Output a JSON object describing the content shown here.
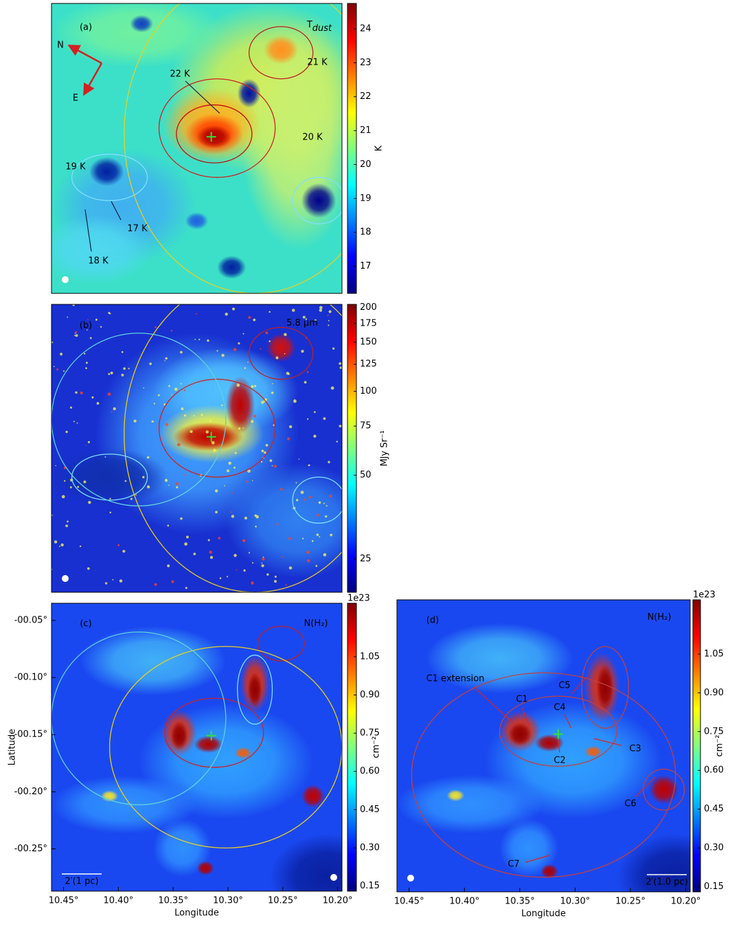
{
  "chart_data": [
    {
      "type": "heatmap",
      "panel": "(a)",
      "title": "T",
      "title_subscript": "dust",
      "annotations": [
        "N",
        "E",
        "22 K",
        "21 K",
        "20 K",
        "19 K",
        "17 K",
        "18 K"
      ],
      "colorbar_label": "K",
      "cmap": "jet",
      "clim": [
        16.2,
        24.75
      ],
      "cticks": [
        17,
        18,
        19,
        20,
        21,
        22,
        23,
        24
      ]
    },
    {
      "type": "heatmap",
      "panel": "(b)",
      "title": "5.8 μm",
      "colorbar_label": "MJy Sr⁻¹",
      "cmap": "jet",
      "cscale": "log",
      "clim": [
        19,
        205
      ],
      "cticks": [
        25,
        50,
        75,
        100,
        125,
        150,
        175,
        200
      ]
    },
    {
      "type": "heatmap",
      "panel": "(c)",
      "title": "N(H₂)",
      "scalebar": "2′(1 pc)",
      "colorbar_label": "cm⁻²",
      "colorbar_offset": "1e23",
      "cmap": "jet",
      "clim": [
        0.13,
        1.26
      ],
      "cticks": [
        0.15,
        {
          "value": 0.3,
          "label": "0.30"
        },
        0.45,
        {
          "value": 0.6,
          "label": "0.60"
        },
        0.75,
        {
          "value": 0.9,
          "label": "0.90"
        },
        1.05
      ],
      "xlabel": "Longitude",
      "ylabel": "Latitude",
      "xlim": [
        10.461,
        10.196
      ],
      "xticks": [
        {
          "value": 10.45,
          "label": "10.45°"
        },
        {
          "value": 10.4,
          "label": "10.40°"
        },
        {
          "value": 10.35,
          "label": "10.35°"
        },
        {
          "value": 10.3,
          "label": "10.30°"
        },
        {
          "value": 10.25,
          "label": "10.25°"
        },
        {
          "value": 10.2,
          "label": "10.20°"
        }
      ],
      "ylim": [
        -0.287,
        -0.035
      ],
      "yticks": [
        {
          "value": -0.05,
          "label": "-00.05°"
        },
        {
          "value": -0.1,
          "label": "-00.10°"
        },
        {
          "value": -0.15,
          "label": "-00.15°"
        },
        {
          "value": -0.2,
          "label": "-00.20°"
        },
        {
          "value": -0.25,
          "label": "-00.25°"
        }
      ]
    },
    {
      "type": "heatmap",
      "panel": "(d)",
      "title": "N(H₂)",
      "scalebar": "2′(1.0 pc)",
      "annotations": [
        "C1 extension",
        "C1",
        "C2",
        "C3",
        "C4",
        "C5",
        "C6",
        "C7"
      ],
      "colorbar_label": "cm⁻²",
      "colorbar_offset": "1e23",
      "cmap": "jet",
      "clim": [
        0.13,
        1.26
      ],
      "cticks": [
        0.15,
        {
          "value": 0.3,
          "label": "0.30"
        },
        0.45,
        {
          "value": 0.6,
          "label": "0.60"
        },
        0.75,
        {
          "value": 0.9,
          "label": "0.90"
        },
        1.05
      ],
      "xlabel": "Longitude",
      "xlim": [
        10.461,
        10.196
      ],
      "xticks": [
        {
          "value": 10.45,
          "label": "10.45°"
        },
        {
          "value": 10.4,
          "label": "10.40°"
        },
        {
          "value": 10.35,
          "label": "10.35°"
        },
        {
          "value": 10.3,
          "label": "10.30°"
        },
        {
          "value": 10.25,
          "label": "10.25°"
        },
        {
          "value": 10.2,
          "label": "10.20°"
        }
      ]
    }
  ]
}
